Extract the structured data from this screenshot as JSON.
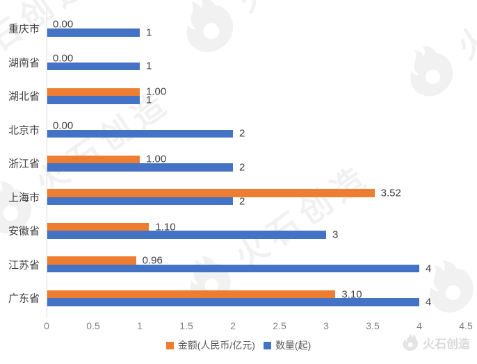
{
  "chart_data": {
    "type": "bar",
    "orientation": "horizontal",
    "title": "",
    "categories": [
      "重庆市",
      "湖南省",
      "湖北省",
      "北京市",
      "浙江省",
      "上海市",
      "安徽省",
      "江苏省",
      "广东省"
    ],
    "series": [
      {
        "name": "金额(人民币/亿元)",
        "color": "#ED7D31",
        "values": [
          0,
          0,
          1,
          0,
          1,
          3.52,
          1.1,
          0.96,
          3.1
        ],
        "labels": [
          "0.00",
          "0.00",
          "1.00",
          "0.00",
          "1.00",
          "3.52",
          "1.10",
          "0.96",
          "3.10"
        ]
      },
      {
        "name": "数量(起)",
        "color": "#4472C4",
        "values": [
          1,
          1,
          1,
          2,
          2,
          2,
          3,
          4,
          4
        ],
        "labels": [
          "1",
          "1",
          "1",
          "2",
          "2",
          "2",
          "3",
          "4",
          "4"
        ]
      }
    ],
    "x_ticks": [
      "0",
      "0.5",
      "1",
      "1.5",
      "2",
      "2.5",
      "3",
      "3.5",
      "4",
      "4.5"
    ],
    "xlim": [
      0,
      4.5
    ],
    "grid": false,
    "legend_position": "bottom"
  },
  "watermark": {
    "text": "火石创造",
    "brand": "火石创造"
  },
  "colors": {
    "amount_series": "#ED7D31",
    "count_series": "#4472C4",
    "axis_line": "#D9D9D9",
    "tick_label": "#808080",
    "data_label": "#404040",
    "category_label": "#404040",
    "legend_label": "#595959",
    "watermark": "#F1F1F1"
  }
}
